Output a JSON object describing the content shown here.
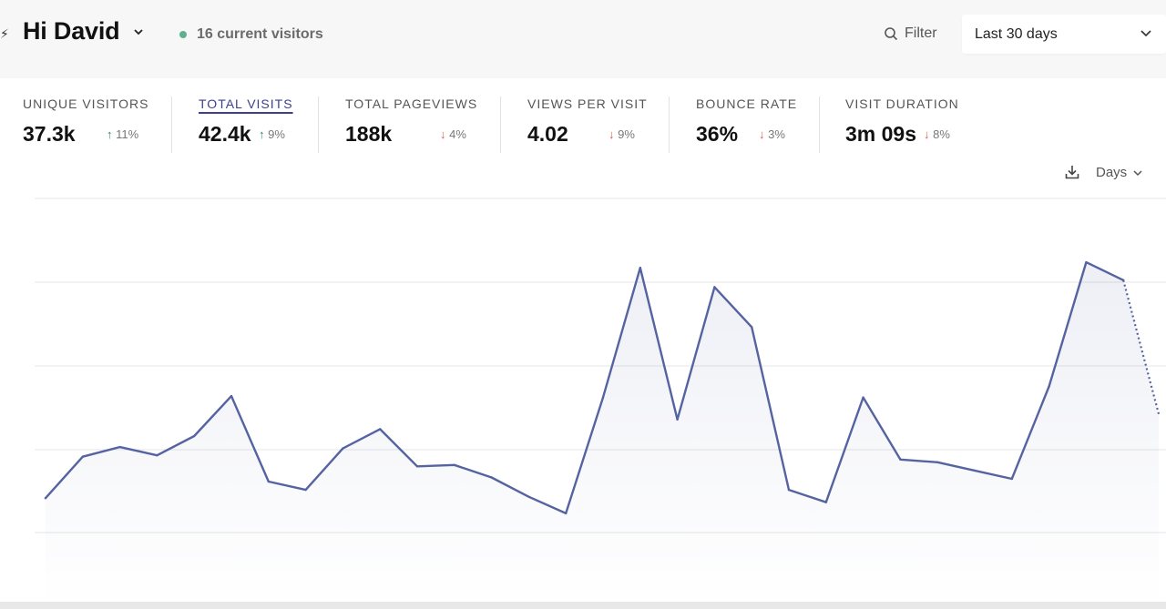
{
  "header": {
    "greeting": "Hi David",
    "current_visitors": "16 current visitors",
    "filter_label": "Filter",
    "period_label": "Last 30 days"
  },
  "stats": [
    {
      "label": "UNIQUE VISITORS",
      "value": "37.3k",
      "change": "11%",
      "direction": "up"
    },
    {
      "label": "TOTAL VISITS",
      "value": "42.4k",
      "change": "9%",
      "direction": "up"
    },
    {
      "label": "TOTAL PAGEVIEWS",
      "value": "188k",
      "change": "4%",
      "direction": "down"
    },
    {
      "label": "VIEWS PER VISIT",
      "value": "4.02",
      "change": "9%",
      "direction": "down"
    },
    {
      "label": "BOUNCE RATE",
      "value": "36%",
      "change": "3%",
      "direction": "down"
    },
    {
      "label": "VISIT DURATION",
      "value": "3m 09s",
      "change": "8%",
      "direction": "down"
    }
  ],
  "chart_controls": {
    "interval_label": "Days"
  },
  "colors": {
    "line": "#5563a0",
    "live_dot": "#5fb08e",
    "active_metric": "#3d3f8e",
    "up": "#2e8a5e",
    "down": "#d9584f"
  },
  "chart_data": {
    "type": "line",
    "series": [
      {
        "values": [
          1.05,
          2.55,
          2.9,
          2.6,
          3.3,
          4.75,
          1.65,
          1.35,
          2.85,
          3.55,
          2.2,
          2.25,
          1.8,
          1.1,
          0.5,
          4.7,
          9.4,
          3.9,
          8.7,
          7.25,
          1.35,
          0.9,
          4.7,
          2.45,
          2.35,
          2.05,
          1.75,
          5.1,
          9.6,
          8.95
        ],
        "dotted_tail_value": 4.1
      }
    ],
    "ylim": [
      0,
      12
    ],
    "grid": true
  }
}
